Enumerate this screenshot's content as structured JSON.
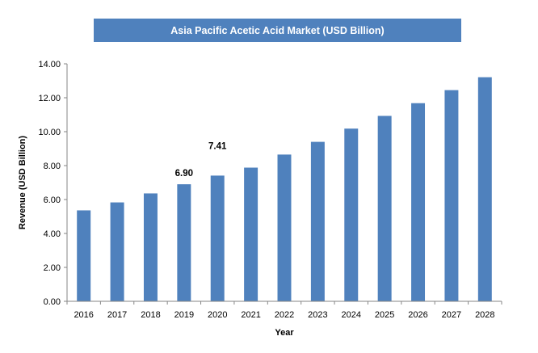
{
  "chart_data": {
    "type": "bar",
    "title": "Asia Pacific Acetic Acid Market (USD Billion)",
    "xlabel": "Year",
    "ylabel": "Revenue (USD Billion)",
    "categories": [
      "2016",
      "2017",
      "2018",
      "2019",
      "2020",
      "2021",
      "2022",
      "2023",
      "2024",
      "2025",
      "2026",
      "2027",
      "2028"
    ],
    "values": [
      5.36,
      5.83,
      6.36,
      6.9,
      7.41,
      7.88,
      8.65,
      9.4,
      10.18,
      10.93,
      11.68,
      12.45,
      13.21
    ],
    "ylim": [
      0,
      14
    ],
    "yticks": [
      "0.00",
      "2.00",
      "4.00",
      "6.00",
      "8.00",
      "10.00",
      "12.00",
      "14.00"
    ],
    "data_labels": [
      {
        "category": "2019",
        "text": "6.90"
      },
      {
        "category": "2020",
        "text": "7.41"
      }
    ],
    "bar_color": "#4f81bd",
    "grid": false,
    "legend": "none"
  }
}
